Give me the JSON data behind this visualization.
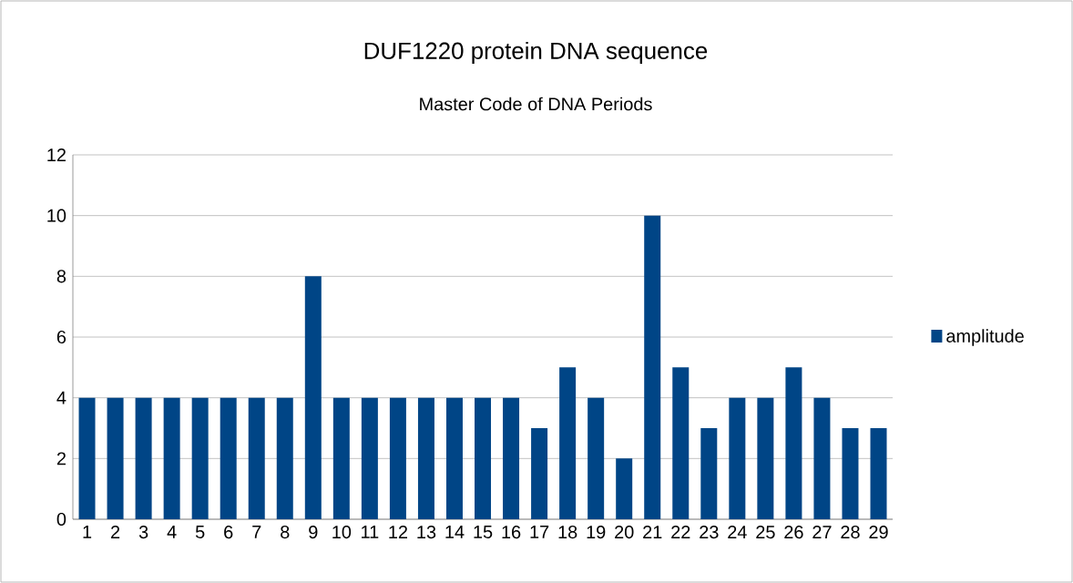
{
  "chart_data": {
    "type": "bar",
    "title": "DUF1220  protein DNA sequence",
    "subtitle": "Master Code of DNA Periods",
    "categories": [
      "1",
      "2",
      "3",
      "4",
      "5",
      "6",
      "7",
      "8",
      "9",
      "10",
      "11",
      "12",
      "13",
      "14",
      "15",
      "16",
      "17",
      "18",
      "19",
      "20",
      "21",
      "22",
      "23",
      "24",
      "25",
      "26",
      "27",
      "28",
      "29"
    ],
    "series": [
      {
        "name": "amplitude",
        "color": "#004586",
        "values": [
          4,
          4,
          4,
          4,
          4,
          4,
          4,
          4,
          8,
          4,
          4,
          4,
          4,
          4,
          4,
          4,
          3,
          5,
          4,
          2,
          10,
          5,
          3,
          4,
          4,
          5,
          4,
          3,
          3
        ]
      }
    ],
    "ylim": [
      0,
      12
    ],
    "yticks": [
      0,
      2,
      4,
      6,
      8,
      10,
      12
    ],
    "grid": "y",
    "legend": "right"
  }
}
